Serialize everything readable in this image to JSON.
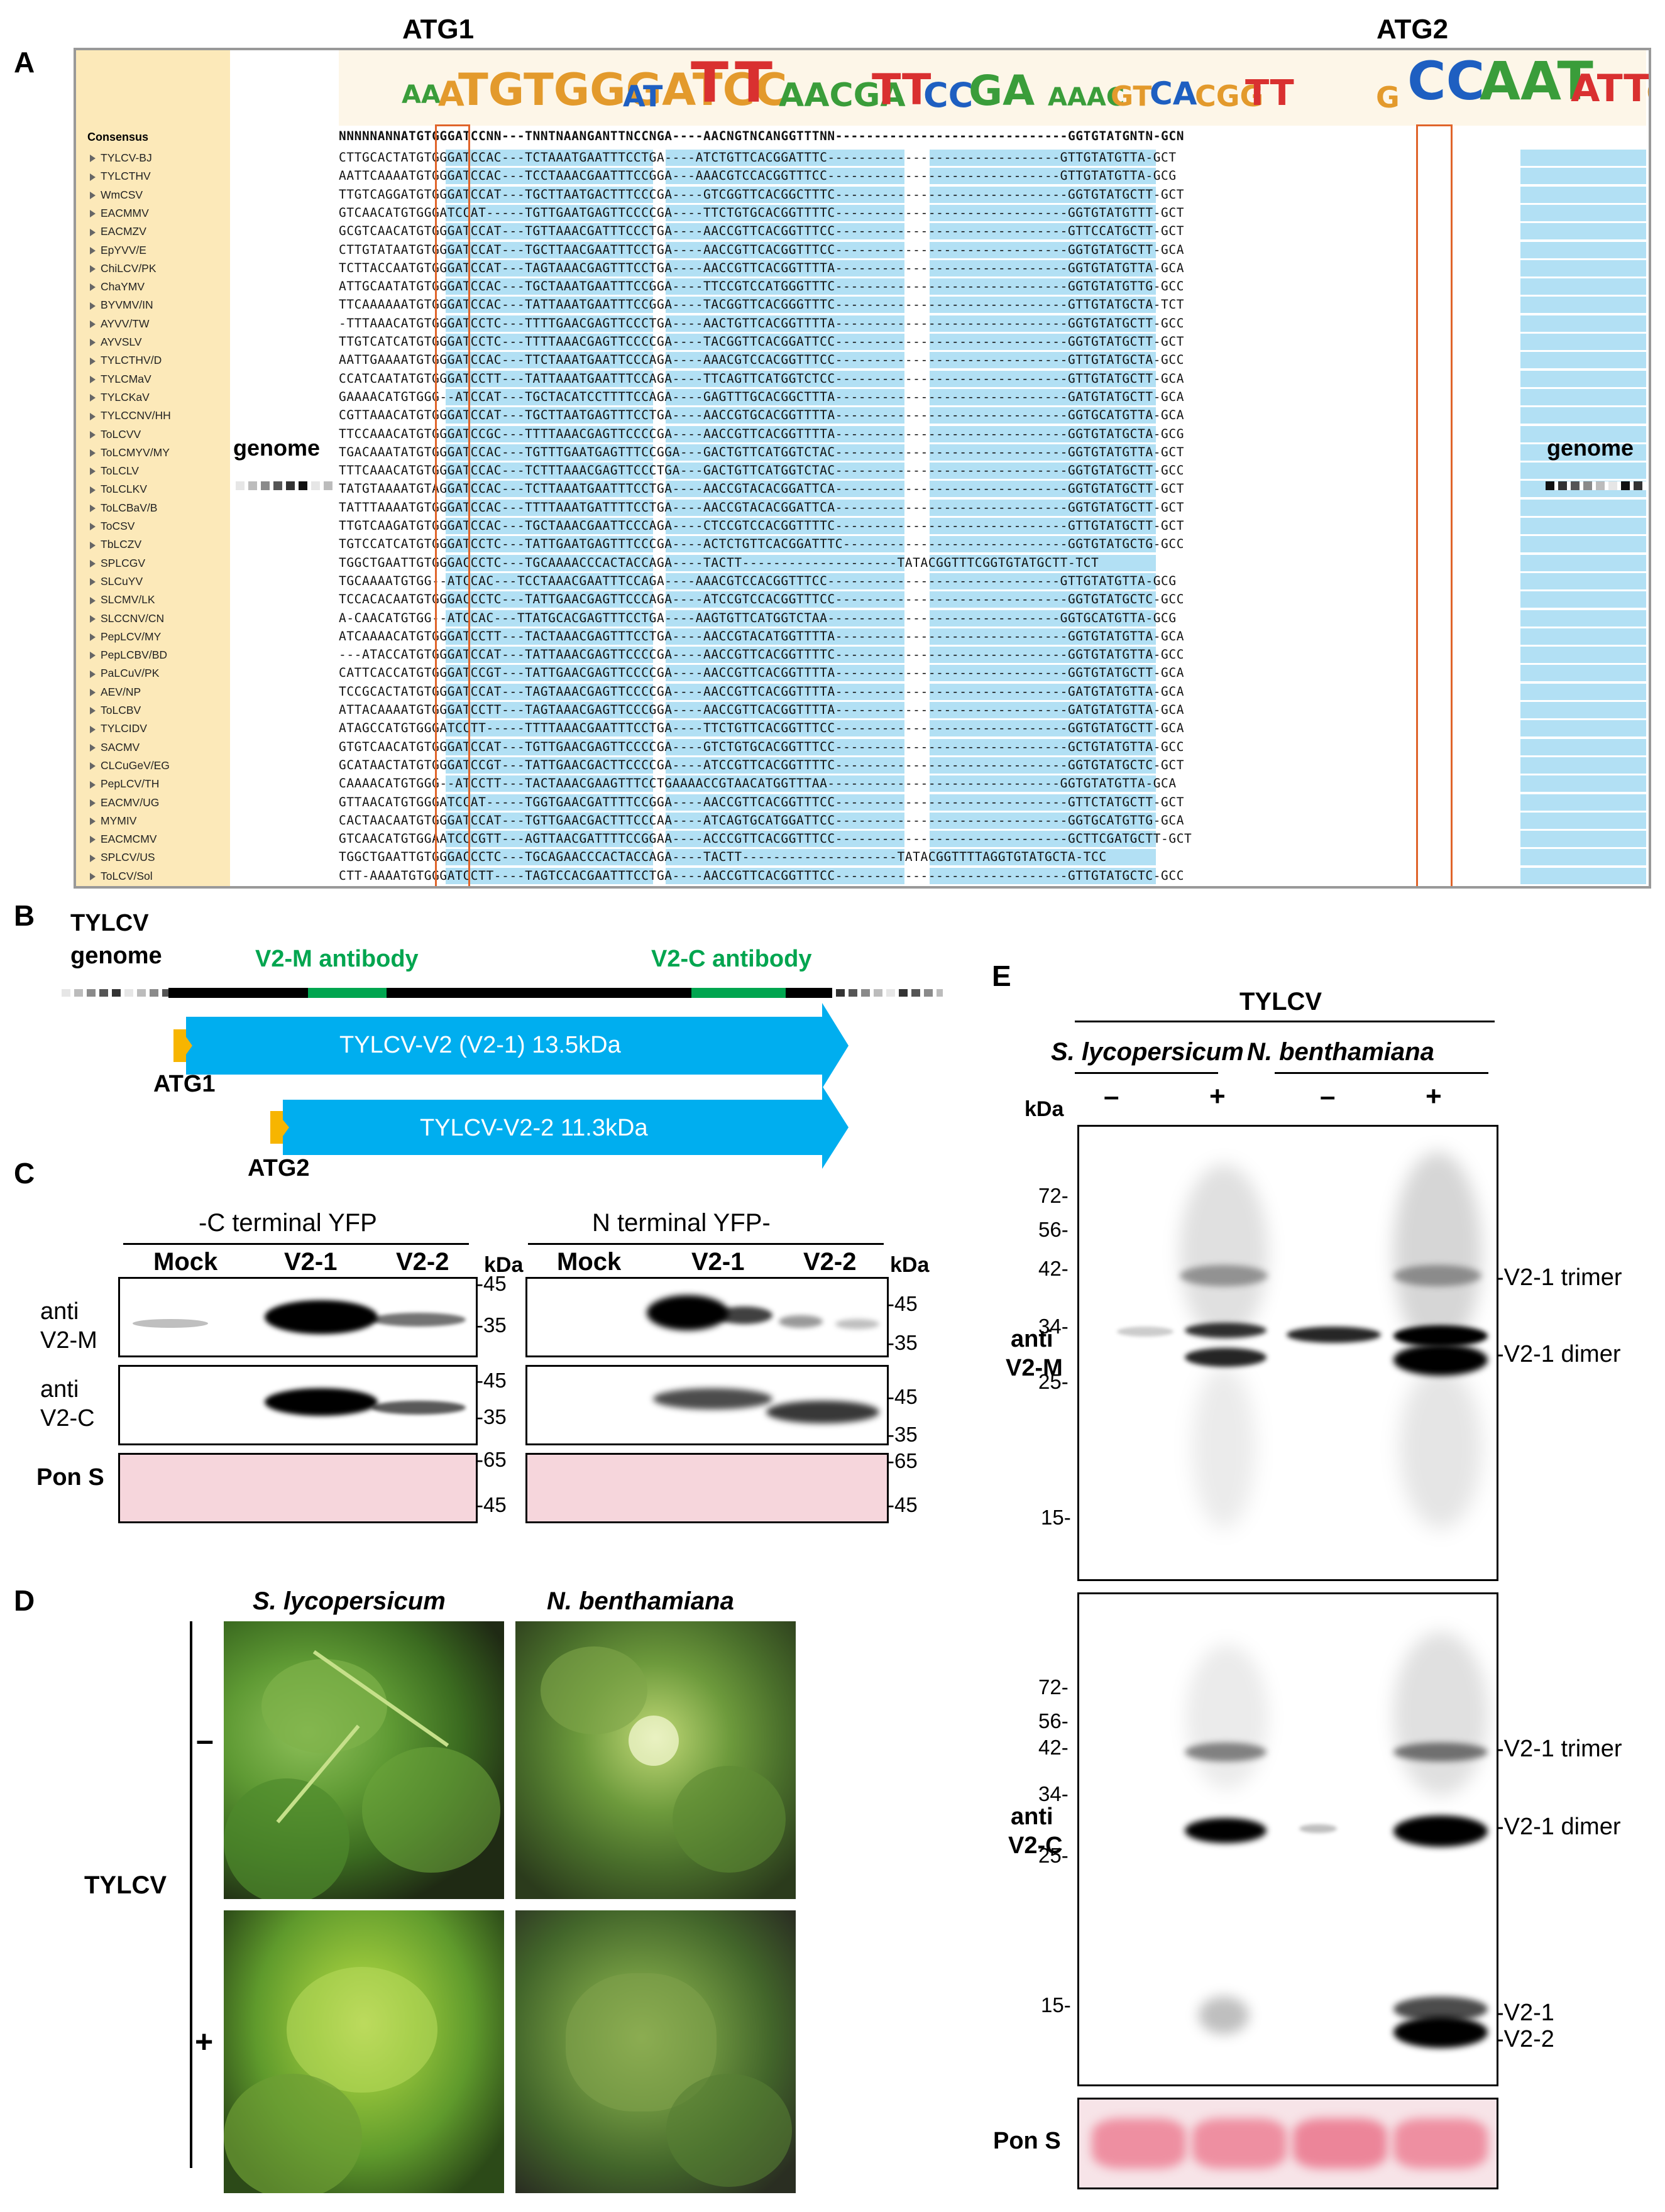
{
  "panels": {
    "a": "A",
    "b": "B",
    "c": "C",
    "d": "D",
    "e": "E"
  },
  "panelA": {
    "atg1": "ATG1",
    "atg2": "ATG2",
    "consensus_label": "Consensus",
    "genome_left": "genome",
    "genome_right": "genome",
    "consensus_seq": "NNNNNANNATGTGGGATCCNN---TNNTNAANGANTTNCCNGA----AACNGTNCANGGTTTNN------------------------------GGTGTATGNTN-GCN",
    "species": [
      "TYLCV-BJ",
      "TYLCTHV",
      "WmCSV",
      "EACMMV",
      "EACMZV",
      "EpYVV/E",
      "ChiLCV/PK",
      "ChaYMV",
      "BYVMV/IN",
      "AYVV/TW",
      "AYVSLV",
      "TYLCTHV/D",
      "TYLCMaV",
      "TYLCKaV",
      "TYLCCNV/HH",
      "ToLCVV",
      "ToLCMYV/MY",
      "ToLCLV",
      "ToLCLKV",
      "ToLCBaV/B",
      "ToCSV",
      "TbLCZV",
      "SPLCGV",
      "SLCuYV",
      "SLCMV/LK",
      "SLCCNV/CN",
      "PepLCV/MY",
      "PepLCBV/BD",
      "PaLCuV/PK",
      "AEV/NP",
      "ToLCBV",
      "TYLCIDV",
      "SACMV",
      "CLCuGeV/EG",
      "PepLCV/TH",
      "EACMV/UG",
      "MYMIV",
      "EACMCMV",
      "SPLCV/US",
      "ToLCV/Sol"
    ],
    "sequences": [
      "CTTGCACTATGTGGGATCCAC---TCTAAATGAATTTCCTGA----ATCTGTTCACGGATTTC------------------------------GTTGTATGTTA-GCT",
      "AATTCAAAATGTGGGATCCAC---TCCTAAACGAATTTCCGGA---AAACGTCCACGGTTTCC------------------------------GTTGTATGTTA-GCG",
      "TTGTCAGGATGTGGGATCCAT---TGCTTAATGACTTTCCCGA----GTCGGTTCACGGCTTTC------------------------------GGTGTATGCTT-GCT",
      "GTCAACATGTGGGATCCAT-----TGTTGAATGAGTTCCCCGA----TTCTGTGCACGGTTTTC------------------------------GGTGTATGTTT-GCT",
      "GCGTCAACATGTGGGATCCAT---TGTTAAACGATTTCCCTGA----AACCGTTCACGGTTTCC------------------------------GTTCCATGCTT-GCT",
      "CTTGTATAATGTGGGATCCAT---TGCTTAACGAATTTCCTGA----AACCGTTCACGGTTTCC------------------------------GGTGTATGCTT-GCA",
      "TCTTACCAATGTGGGATCCAT---TAGTAAACGAGTTTCCTGA----AACCGTTCACGGTTTTA------------------------------GGTGTATGTTA-GCA",
      "ATTGCAATATGTGGGATCCAC---TGCTAAATGAATTTCCGGA----TTCCGTCCATGGGTTTC------------------------------GGTGTATGTTG-GCC",
      "TTCAAAAAATGTGGGATCCAC---TATTAAATGAATTTCCGGA----TACGGTTCACGGGTTTC------------------------------GTTGTATGCTA-TCT",
      "-TTTAAACATGTGGGATCCTC---TTTTGAACGAGTTCCCTGA----AACTGTTCACGGTTTTA------------------------------GGTGTATGCTT-GCC",
      "TTGTCATCATGTGGGATCCTC---TTTTAAACGAGTTCCCCGA----TACGGTTCACGGATTCC------------------------------GGTGTATGCTT-GCT",
      "AATTGAAAATGTGGGATCCAC---TTCTAAATGAATTCCCAGA----AAACGTCCACGGTTTCC------------------------------GTTGTATGCTA-GCC",
      "CCATCAATATGTGGGATCCTT---TATTAAATGAATTTCCAGA----TTCAGTTCATGGTCTCC------------------------------GTTGTATGCTT-GCA",
      "GAAAACATGTGGG--ATCCAT---TGCTACATCCTTTTCCAGA----GAGTTTGCACGGCTTTA------------------------------GATGTATGCTT-GCA",
      "CGTTAAACATGTGGGATCCAT---TGCTTAATGAGTTTCCTGA----AACCGTGCACGGTTTTA------------------------------GGTGCATGTTA-GCA",
      "TTCCAAACATGTGGGATCCGC---TTTTAAACGAGTTCCCCGA----AACCGTTCACGGTTTTA------------------------------GGTGTATGCTA-GCG",
      "TGACAAATATGTGGGATCCAC---TGTTTGAATGAGTTTCCGGA---GACTGTTCATGGTCTAC------------------------------GGTGTATGTTA-GCT",
      "TTTCAAACATGTGGGATCCAC---TCTTTAAACGAGTTCCCTGA---GACTGTTCATGGTCTAC------------------------------GGTGTATGCTT-GCC",
      "TATGTAAAATGTAGGATCCAC---TCTTAAATGAATTTCCTGA----AACCGTACACGGATTCA------------------------------GGTGTATGCTT-GCT",
      "TATTTAAAATGTGGGATCCAC---TTTTAAATGATTTTCCTGA----AACCGTACACGGATTCA------------------------------GGTGTATGCTT-GCT",
      "TTGTCAAGATGTGGGATCCAC---TGCTAAACGAATTCCCAGA----CTCCGTCCACGGTTTTC------------------------------GTTGTATGCTT-GCT",
      "TGTCCATCATGTGGGATCCTC---TATTGAATGAGTTTCCCGA----ACTCTGTTCACGGATTTC-----------------------------GGTGTATGCTG-GCC",
      "TGGCTGAATTGTGGGACCCTC---TGCAAAACCCACTACCAGA----TACTT--------------------TATACGGTTTCGGTGTATGCTT-TCT",
      "TGCAAAATGTGG--ATCCAC---TCCTAAACGAATTTCCAGA----AAACGTCCACGGTTTCC------------------------------GTTGTATGTTA-GCG",
      "TCCACACAATGTGGGACCCTC---TATTGAACGAGTTCCCAGA----ATCCGTCCACGGTTTCC------------------------------GGTGTATGCTC-GCC",
      "A-CAACATGTGG--ATCCAC---TTATGCACGAGTTTCCTGA----AAGTGTTCATGGTCTAA------------------------------GGTGCATGTTA-GCG",
      "ATCAAAACATGTGGGATCCTT---TACTAAACGAGTTTCCTGA----AACCGTACATGGTTTTA------------------------------GGTGTATGTTA-GCA",
      "---ATACCATGTGGGATCCAT---TATTAAACGAGTTCCCCGA----AACCGTTCACGGTTTTC------------------------------GGTGTATGTTA-GCC",
      "CATTCACCATGTGGGATCCGT---TATTGAACGAGTTCCCCGA----AACCGTTCACGGTTTTA------------------------------GGTGTATGCTT-GCA",
      "TCCGCACTATGTGGGATCCAT---TAGTAAACGAGTTCCCCGA----AACCGTTCACGGTTTTA------------------------------GATGTATGTTA-GCA",
      "ATTACAAAATGTGGGATCCTT---TAGTAAACGAGTTCCCGGA----AACCGTTCACGGTTTTA------------------------------GATGTATGTTA-GCA",
      "ATAGCCATGTGGGATCCTT-----TTTTAAACGAATTTCCTGA----TTCTGTTCACGGTTTCC------------------------------GGTGTATGCTT-GCA",
      "GTGTCAACATGTGGGATCCAT---TGTTGAACGAGTTCCCCGA----GTCTGTGCACGGTTTCC------------------------------GCTGTATGTTA-GCC",
      "GCATAACTATGTGGGATCCGT---TATTGAACGACTTCCCCGA----ATCCGTTCACGGTTTTC------------------------------GGTGTATGCTC-GCT",
      "CAAAACATGTGGG--ATCCTT---TACTAAACGAAGTTTCCTGAAAACCGTAACATGGTTTAA------------------------------GGTGTATGTTA-GCA",
      "GTTAACATGTGGGATCCAT-----TGGTGAACGATTTTCCGGA----AACCGTTCACGGTTTCC------------------------------GTTCTATGCTT-GCT",
      "CACTAACAATGTGGGATCCAT---TGTTGAACGACTTTCCCAA----ATCAGTGCATGGATTCC------------------------------GGTGCATGTTG-GCA",
      "GTCAACATGTGGAATCCCGTT---AGTTAACGATTTTCCGGAA----ACCCGTTCACGGTTTCC------------------------------GCTTCGATGCTT-GCT",
      "TGGCTGAATTGTGGGACCCTC---TGCAGAACCCACTACCAGA----TACTT--------------------TATACGGTTTTAGGTGTATGCTA-TCC",
      "CTT-AAAATGTGGGATCCTT----TAGTCCACGAATTTCCTGA----AACCGTTCACGGTTTCC------------------------------GTTGTATGCTC-GCC"
    ]
  },
  "panelB": {
    "title_line1": "TYLCV",
    "title_line2": "genome",
    "v2m_antibody": "V2-M antibody",
    "v2c_antibody": "V2-C antibody",
    "arrow1": "TYLCV-V2 (V2-1) 13.5kDa",
    "arrow2": "TYLCV-V2-2 11.3kDa",
    "atg1": "ATG1",
    "atg2": "ATG2",
    "colors": {
      "arrow": "#00aeef",
      "start": "#f7b500",
      "antibody": "#00a54f"
    }
  },
  "panelC": {
    "left_header": "-C terminal YFP",
    "right_header": "N terminal YFP-",
    "lanes_left": [
      "Mock",
      "V2-1",
      "V2-2"
    ],
    "lanes_right": [
      "Mock",
      "V2-1",
      "V2-2"
    ],
    "kda": "kDa",
    "row_labels": [
      "anti\nV2-M",
      "anti\nV2-C",
      "Pon S"
    ],
    "row1_l": [
      "anti",
      "V2-M"
    ],
    "row2_l": [
      "anti",
      "V2-C"
    ],
    "row3_l": "Pon S",
    "markers_row1": [
      "45",
      "35"
    ],
    "markers_row2": [
      "45",
      "35"
    ],
    "markers_row3": [
      "65",
      "45"
    ]
  },
  "panelD": {
    "col1": "S. lycopersicum",
    "col2": "N. benthamiana",
    "minus": "–",
    "plus": "+",
    "side_label": "TYLCV"
  },
  "panelE": {
    "title": "TYLCV",
    "host1": "S. lycopersicum",
    "host2": "N. benthamiana",
    "kda": "kDa",
    "signs": [
      "–",
      "+",
      "–",
      "+"
    ],
    "upper_label": [
      "anti",
      "V2-M"
    ],
    "lower_label": [
      "anti",
      "V2-C"
    ],
    "upper_markers": [
      "72",
      "56",
      "42",
      "34",
      "25",
      "15"
    ],
    "lower_markers": [
      "72",
      "56",
      "42",
      "34",
      "25",
      "15"
    ],
    "upper_bands": [
      "V2-1 trimer",
      "V2-1 dimer"
    ],
    "lower_bands": [
      "V2-1 trimer",
      "V2-1 dimer",
      "V2-1",
      "V2-2"
    ],
    "pons": "Pon S"
  }
}
